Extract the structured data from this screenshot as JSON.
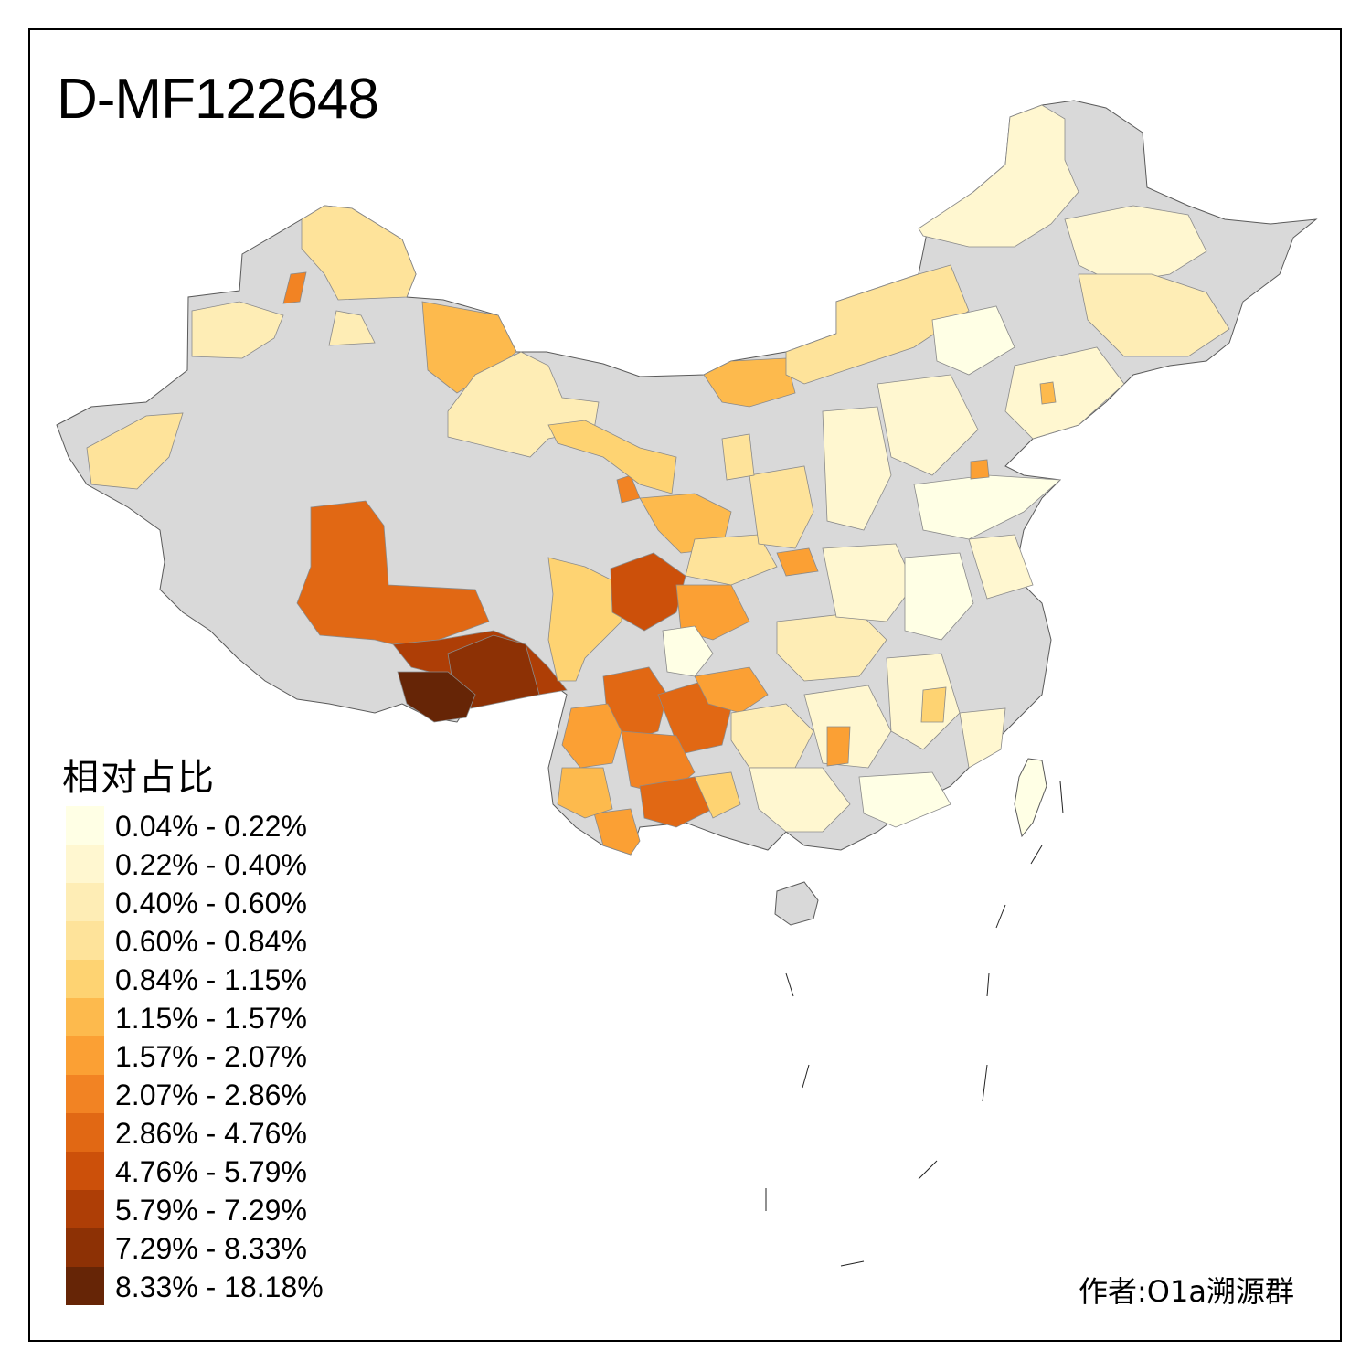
{
  "title": "D-MF122648",
  "legend": {
    "title": "相对占比",
    "items": [
      {
        "label": "0.04% - 0.22%",
        "color": "#FFFFE5"
      },
      {
        "label": "0.22% - 0.40%",
        "color": "#FFF7D0"
      },
      {
        "label": "0.40% - 0.60%",
        "color": "#FEEDB5"
      },
      {
        "label": "0.60% - 0.84%",
        "color": "#FEE39A"
      },
      {
        "label": "0.84% - 1.15%",
        "color": "#FED372"
      },
      {
        "label": "1.15% - 1.57%",
        "color": "#FDBA4D"
      },
      {
        "label": "1.57% - 2.07%",
        "color": "#FBA034"
      },
      {
        "label": "2.07% - 2.86%",
        "color": "#F28323"
      },
      {
        "label": "2.86% - 4.76%",
        "color": "#E16814"
      },
      {
        "label": "4.76% - 5.79%",
        "color": "#CC500A"
      },
      {
        "label": "5.79% - 7.29%",
        "color": "#AE3E06"
      },
      {
        "label": "7.29% - 8.33%",
        "color": "#8D3105"
      },
      {
        "label": "8.33% - 18.18%",
        "color": "#662506"
      }
    ]
  },
  "no_data_color": "#D9D9D9",
  "credit": "作者:O1a溯源群"
}
